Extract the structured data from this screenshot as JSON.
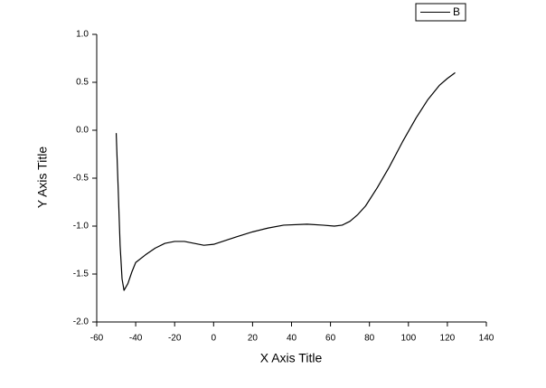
{
  "chart_data": {
    "type": "line",
    "x_label": "X Axis Title",
    "y_label": "Y Axis Title",
    "x": [
      -50,
      -49,
      -48,
      -47,
      -46,
      -44,
      -42,
      -40,
      -35,
      -30,
      -25,
      -20,
      -15,
      -10,
      -5,
      0,
      6,
      12,
      20,
      28,
      36,
      48,
      56,
      62,
      66,
      70,
      74,
      78,
      84,
      90,
      97,
      104,
      110,
      116,
      120,
      124
    ],
    "series": [
      {
        "name": "B",
        "color": "#000000",
        "values": [
          -0.03,
          -0.6,
          -1.2,
          -1.55,
          -1.67,
          -1.6,
          -1.48,
          -1.38,
          -1.3,
          -1.23,
          -1.18,
          -1.16,
          -1.16,
          -1.18,
          -1.2,
          -1.19,
          -1.15,
          -1.11,
          -1.06,
          -1.02,
          -0.99,
          -0.98,
          -0.99,
          -1.0,
          -0.99,
          -0.95,
          -0.88,
          -0.79,
          -0.6,
          -0.39,
          -0.12,
          0.13,
          0.32,
          0.47,
          0.54,
          0.6
        ]
      }
    ],
    "xlim": [
      -60,
      140
    ],
    "xticks": [
      -60,
      -40,
      -20,
      0,
      20,
      40,
      60,
      80,
      100,
      120,
      140
    ],
    "ylim": [
      -2,
      1
    ],
    "yticks": [
      {
        "value": -2,
        "label": "-2.0"
      },
      {
        "value": -1.5,
        "label": "-1.5"
      },
      {
        "value": -1,
        "label": "-1.0"
      },
      {
        "value": -0.5,
        "label": "-0.5"
      },
      {
        "value": 0,
        "label": "0.0"
      },
      {
        "value": 0.5,
        "label": "0.5"
      },
      {
        "value": 1,
        "label": "1.0"
      }
    ],
    "legend": "top-right",
    "grid": false
  }
}
